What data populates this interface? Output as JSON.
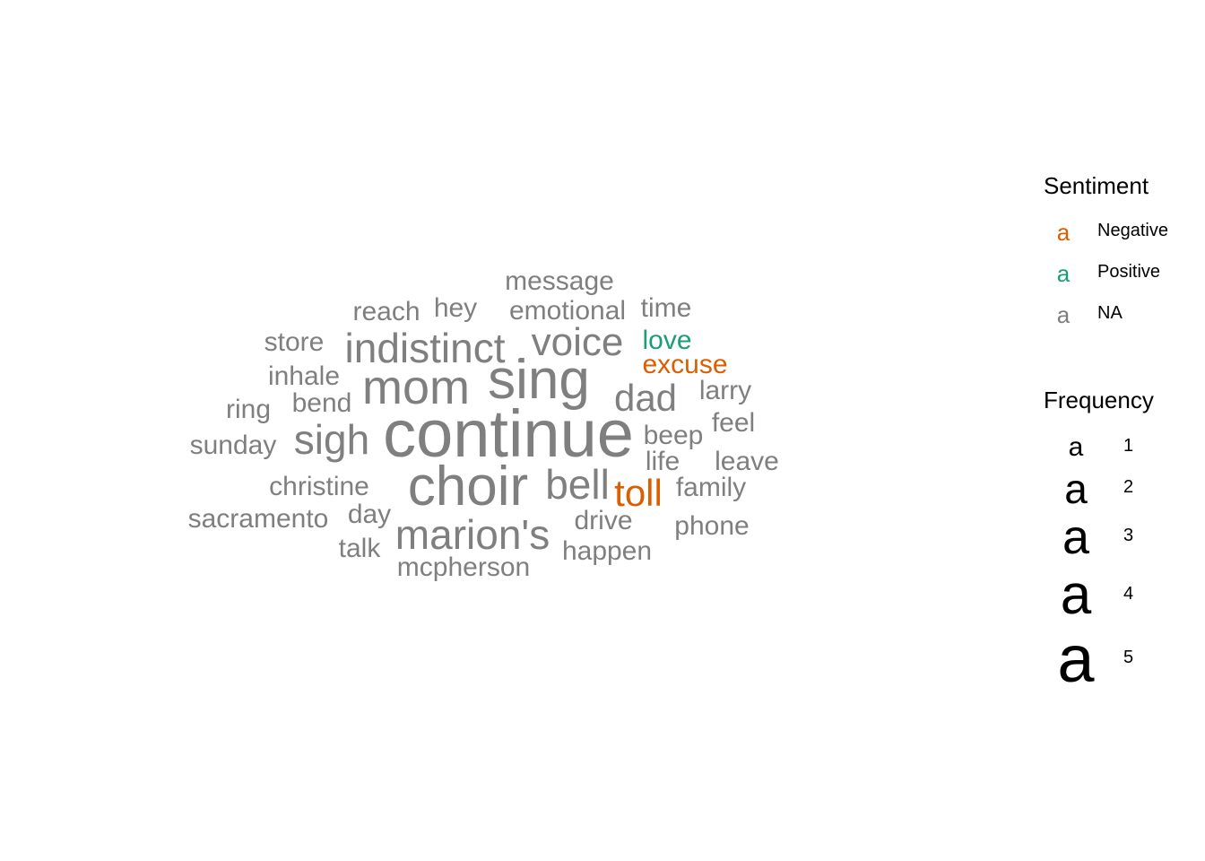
{
  "chart_data": {
    "type": "wordcloud",
    "words": [
      {
        "text": "continue",
        "freq": 5,
        "sentiment": "NA"
      },
      {
        "text": "sing",
        "freq": 4,
        "sentiment": "NA"
      },
      {
        "text": "choir",
        "freq": 4,
        "sentiment": "NA"
      },
      {
        "text": "mom",
        "freq": 3,
        "sentiment": "NA"
      },
      {
        "text": "indistinct",
        "freq": 2,
        "sentiment": "NA"
      },
      {
        "text": "voice",
        "freq": 2,
        "sentiment": "NA"
      },
      {
        "text": "dad",
        "freq": 2,
        "sentiment": "NA"
      },
      {
        "text": "sigh",
        "freq": 2,
        "sentiment": "NA"
      },
      {
        "text": "bell",
        "freq": 2,
        "sentiment": "NA"
      },
      {
        "text": "marion's",
        "freq": 2,
        "sentiment": "NA"
      },
      {
        "text": "toll",
        "freq": 2,
        "sentiment": "Negative"
      },
      {
        "text": ".",
        "freq": 2,
        "sentiment": "NA"
      },
      {
        "text": "message",
        "freq": 1,
        "sentiment": "NA"
      },
      {
        "text": "reach",
        "freq": 1,
        "sentiment": "NA"
      },
      {
        "text": "hey",
        "freq": 1,
        "sentiment": "NA"
      },
      {
        "text": "emotional",
        "freq": 1,
        "sentiment": "NA"
      },
      {
        "text": "time",
        "freq": 1,
        "sentiment": "NA"
      },
      {
        "text": "store",
        "freq": 1,
        "sentiment": "NA"
      },
      {
        "text": "love",
        "freq": 1,
        "sentiment": "Positive"
      },
      {
        "text": "excuse",
        "freq": 1,
        "sentiment": "Negative"
      },
      {
        "text": "inhale",
        "freq": 1,
        "sentiment": "NA"
      },
      {
        "text": "larry",
        "freq": 1,
        "sentiment": "NA"
      },
      {
        "text": "ring",
        "freq": 1,
        "sentiment": "NA"
      },
      {
        "text": "bend",
        "freq": 1,
        "sentiment": "NA"
      },
      {
        "text": "feel",
        "freq": 1,
        "sentiment": "NA"
      },
      {
        "text": "beep",
        "freq": 1,
        "sentiment": "NA"
      },
      {
        "text": "sunday",
        "freq": 1,
        "sentiment": "NA"
      },
      {
        "text": "life",
        "freq": 1,
        "sentiment": "NA"
      },
      {
        "text": "leave",
        "freq": 1,
        "sentiment": "NA"
      },
      {
        "text": "christine",
        "freq": 1,
        "sentiment": "NA"
      },
      {
        "text": "family",
        "freq": 1,
        "sentiment": "NA"
      },
      {
        "text": "sacramento",
        "freq": 1,
        "sentiment": "NA"
      },
      {
        "text": "day",
        "freq": 1,
        "sentiment": "NA"
      },
      {
        "text": "drive",
        "freq": 1,
        "sentiment": "NA"
      },
      {
        "text": "phone",
        "freq": 1,
        "sentiment": "NA"
      },
      {
        "text": "talk",
        "freq": 1,
        "sentiment": "NA"
      },
      {
        "text": "happen",
        "freq": 1,
        "sentiment": "NA"
      },
      {
        "text": "mcpherson",
        "freq": 1,
        "sentiment": "NA"
      }
    ],
    "legend": {
      "sentiment_title": "Sentiment",
      "sentiment_keys": [
        {
          "label": "Negative",
          "glyph": "a",
          "color": "#D95F02"
        },
        {
          "label": "Positive",
          "glyph": "a",
          "color": "#1B9E77"
        },
        {
          "label": "NA",
          "glyph": "a",
          "color": "#7F7F7F"
        }
      ],
      "frequency_title": "Frequency",
      "frequency_keys": [
        {
          "label": "1",
          "glyph": "a",
          "freq": 1
        },
        {
          "label": "2",
          "glyph": "a",
          "freq": 2
        },
        {
          "label": "3",
          "glyph": "a",
          "freq": 3
        },
        {
          "label": "4",
          "glyph": "a",
          "freq": 4
        },
        {
          "label": "5",
          "glyph": "a",
          "freq": 5
        }
      ],
      "placement": "right"
    },
    "colors": {
      "Negative": "#D95F02",
      "Positive": "#1B9E77",
      "NA": "#7F7F7F"
    }
  }
}
